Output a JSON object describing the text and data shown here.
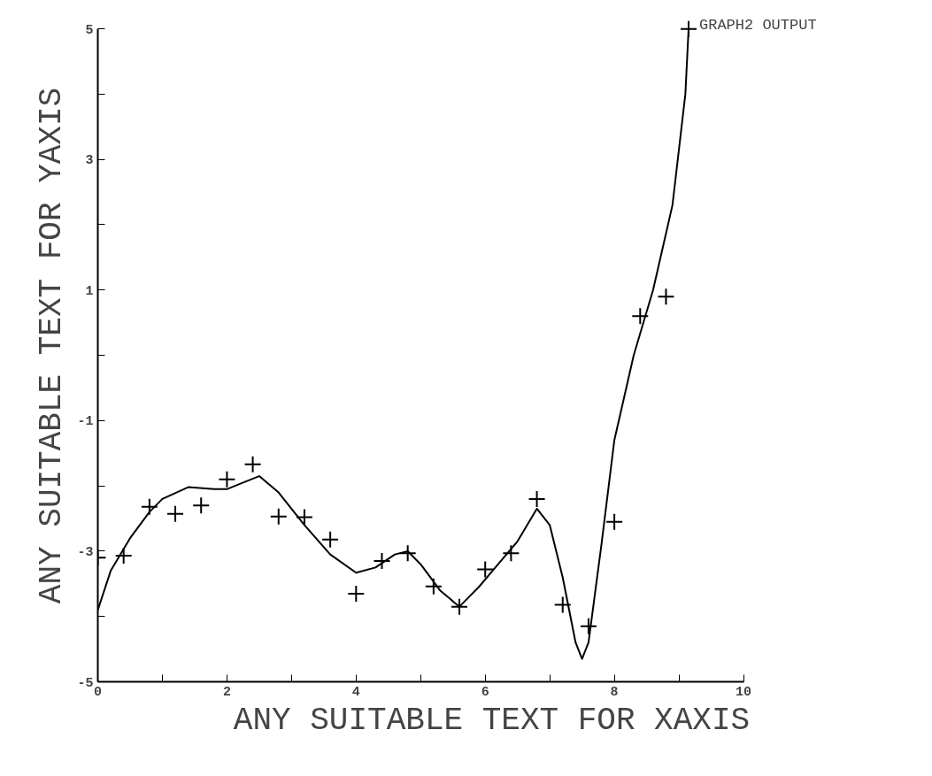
{
  "chart_data": {
    "type": "scatter",
    "xlabel": "ANY SUITABLE TEXT FOR XAXIS",
    "ylabel": "ANY SUITABLE TEXT FOR YAXIS",
    "xlim": [
      0,
      10
    ],
    "ylim": [
      -5,
      5
    ],
    "xticks": [
      0,
      {
        "value": 1,
        "label": null
      },
      2,
      {
        "value": 3,
        "label": null
      },
      4,
      {
        "value": 5,
        "label": null
      },
      6,
      {
        "value": 7,
        "label": null
      },
      8,
      {
        "value": 9,
        "label": null
      },
      10
    ],
    "yticks": [
      -5,
      {
        "value": -4,
        "label": null
      },
      -3,
      {
        "value": -2,
        "label": null
      },
      -1,
      {
        "value": 0,
        "label": null
      },
      1,
      {
        "value": 2,
        "label": null
      },
      3,
      {
        "value": 4,
        "label": null
      },
      5
    ],
    "grid": false,
    "marker": "cross",
    "annotations": [
      {
        "text": "GRAPH2 OUTPUT",
        "x": 9.15,
        "y": 5.0
      }
    ],
    "series": [
      {
        "color": "#000000",
        "x": [
          0,
          0.4,
          0.8,
          1.2,
          1.6,
          2.0,
          2.4,
          2.8,
          3.2,
          3.6,
          4.0,
          4.4,
          4.8,
          5.2,
          5.6,
          6.0,
          6.4,
          6.8,
          7.2,
          7.6,
          8.0,
          8.4,
          8.8,
          9.15
        ],
        "values": [
          -3.1,
          -3.07,
          -2.32,
          -2.43,
          -2.3,
          -1.9,
          -1.67,
          -2.47,
          -2.48,
          -2.82,
          -3.65,
          -3.15,
          -3.03,
          -3.54,
          -3.85,
          -3.28,
          -3.03,
          -2.2,
          -3.82,
          -4.15,
          -2.55,
          0.6,
          0.9,
          5.0
        ]
      },
      {
        "type": "line",
        "color": "#000000",
        "marker": "none",
        "line_style": "solid",
        "x": [
          0,
          0.2,
          0.5,
          0.8,
          1.0,
          1.4,
          1.8,
          2.0,
          2.2,
          2.5,
          2.8,
          3.2,
          3.6,
          4.0,
          4.3,
          4.6,
          4.8,
          5.0,
          5.3,
          5.6,
          5.9,
          6.2,
          6.5,
          6.8,
          7.0,
          7.2,
          7.4,
          7.5,
          7.6,
          7.8,
          8.0,
          8.3,
          8.6,
          8.9,
          9.1,
          9.15
        ],
        "values": [
          -3.9,
          -3.3,
          -2.8,
          -2.4,
          -2.2,
          -2.02,
          -2.05,
          -2.05,
          -1.97,
          -1.85,
          -2.1,
          -2.6,
          -3.05,
          -3.33,
          -3.25,
          -3.05,
          -3.0,
          -3.2,
          -3.6,
          -3.85,
          -3.55,
          -3.2,
          -2.85,
          -2.35,
          -2.6,
          -3.4,
          -4.4,
          -4.65,
          -4.4,
          -2.9,
          -1.3,
          0.0,
          1.0,
          2.3,
          4.0,
          5.0
        ]
      }
    ]
  }
}
